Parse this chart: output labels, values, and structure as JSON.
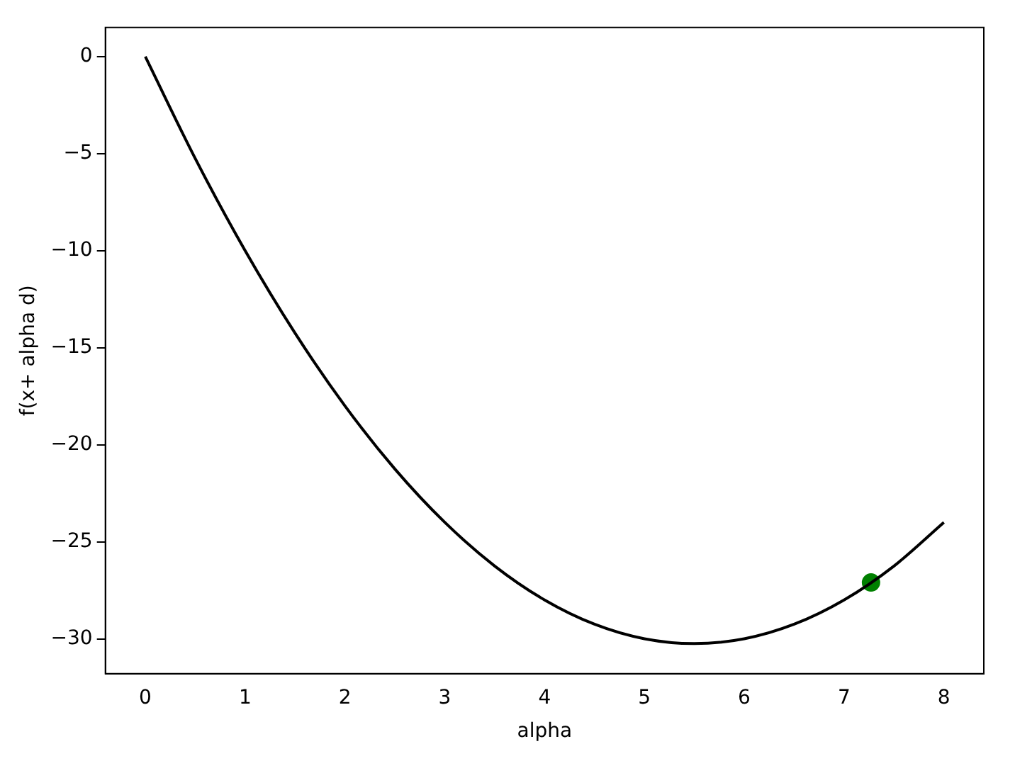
{
  "chart_data": {
    "type": "line",
    "xlabel": "alpha",
    "ylabel": "f(x+ alpha d)",
    "xlim": [
      -0.4,
      8.4
    ],
    "ylim": [
      -31.8,
      1.5
    ],
    "xticks": [
      0,
      1,
      2,
      3,
      4,
      5,
      6,
      7,
      8
    ],
    "yticks": [
      0,
      -5,
      -10,
      -15,
      -20,
      -25,
      -30
    ],
    "grid": false,
    "legend": false,
    "series": [
      {
        "color": "#000000",
        "x": [
          0,
          0.5,
          1,
          1.5,
          2,
          2.5,
          3,
          3.5,
          4,
          4.5,
          5,
          5.5,
          6,
          6.5,
          7,
          7.5,
          8
        ],
        "values": [
          0,
          -5.25,
          -10,
          -14.25,
          -18,
          -21.25,
          -24,
          -26.25,
          -28,
          -29.25,
          -30,
          -30.25,
          -30,
          -29.25,
          -28,
          -26.25,
          -24
        ],
        "marker": "none",
        "line_style": "solid"
      },
      {
        "type": "scatter",
        "color": "#008000",
        "x": [
          7.27
        ],
        "values": [
          -27.1
        ],
        "marker": "circle"
      }
    ]
  }
}
